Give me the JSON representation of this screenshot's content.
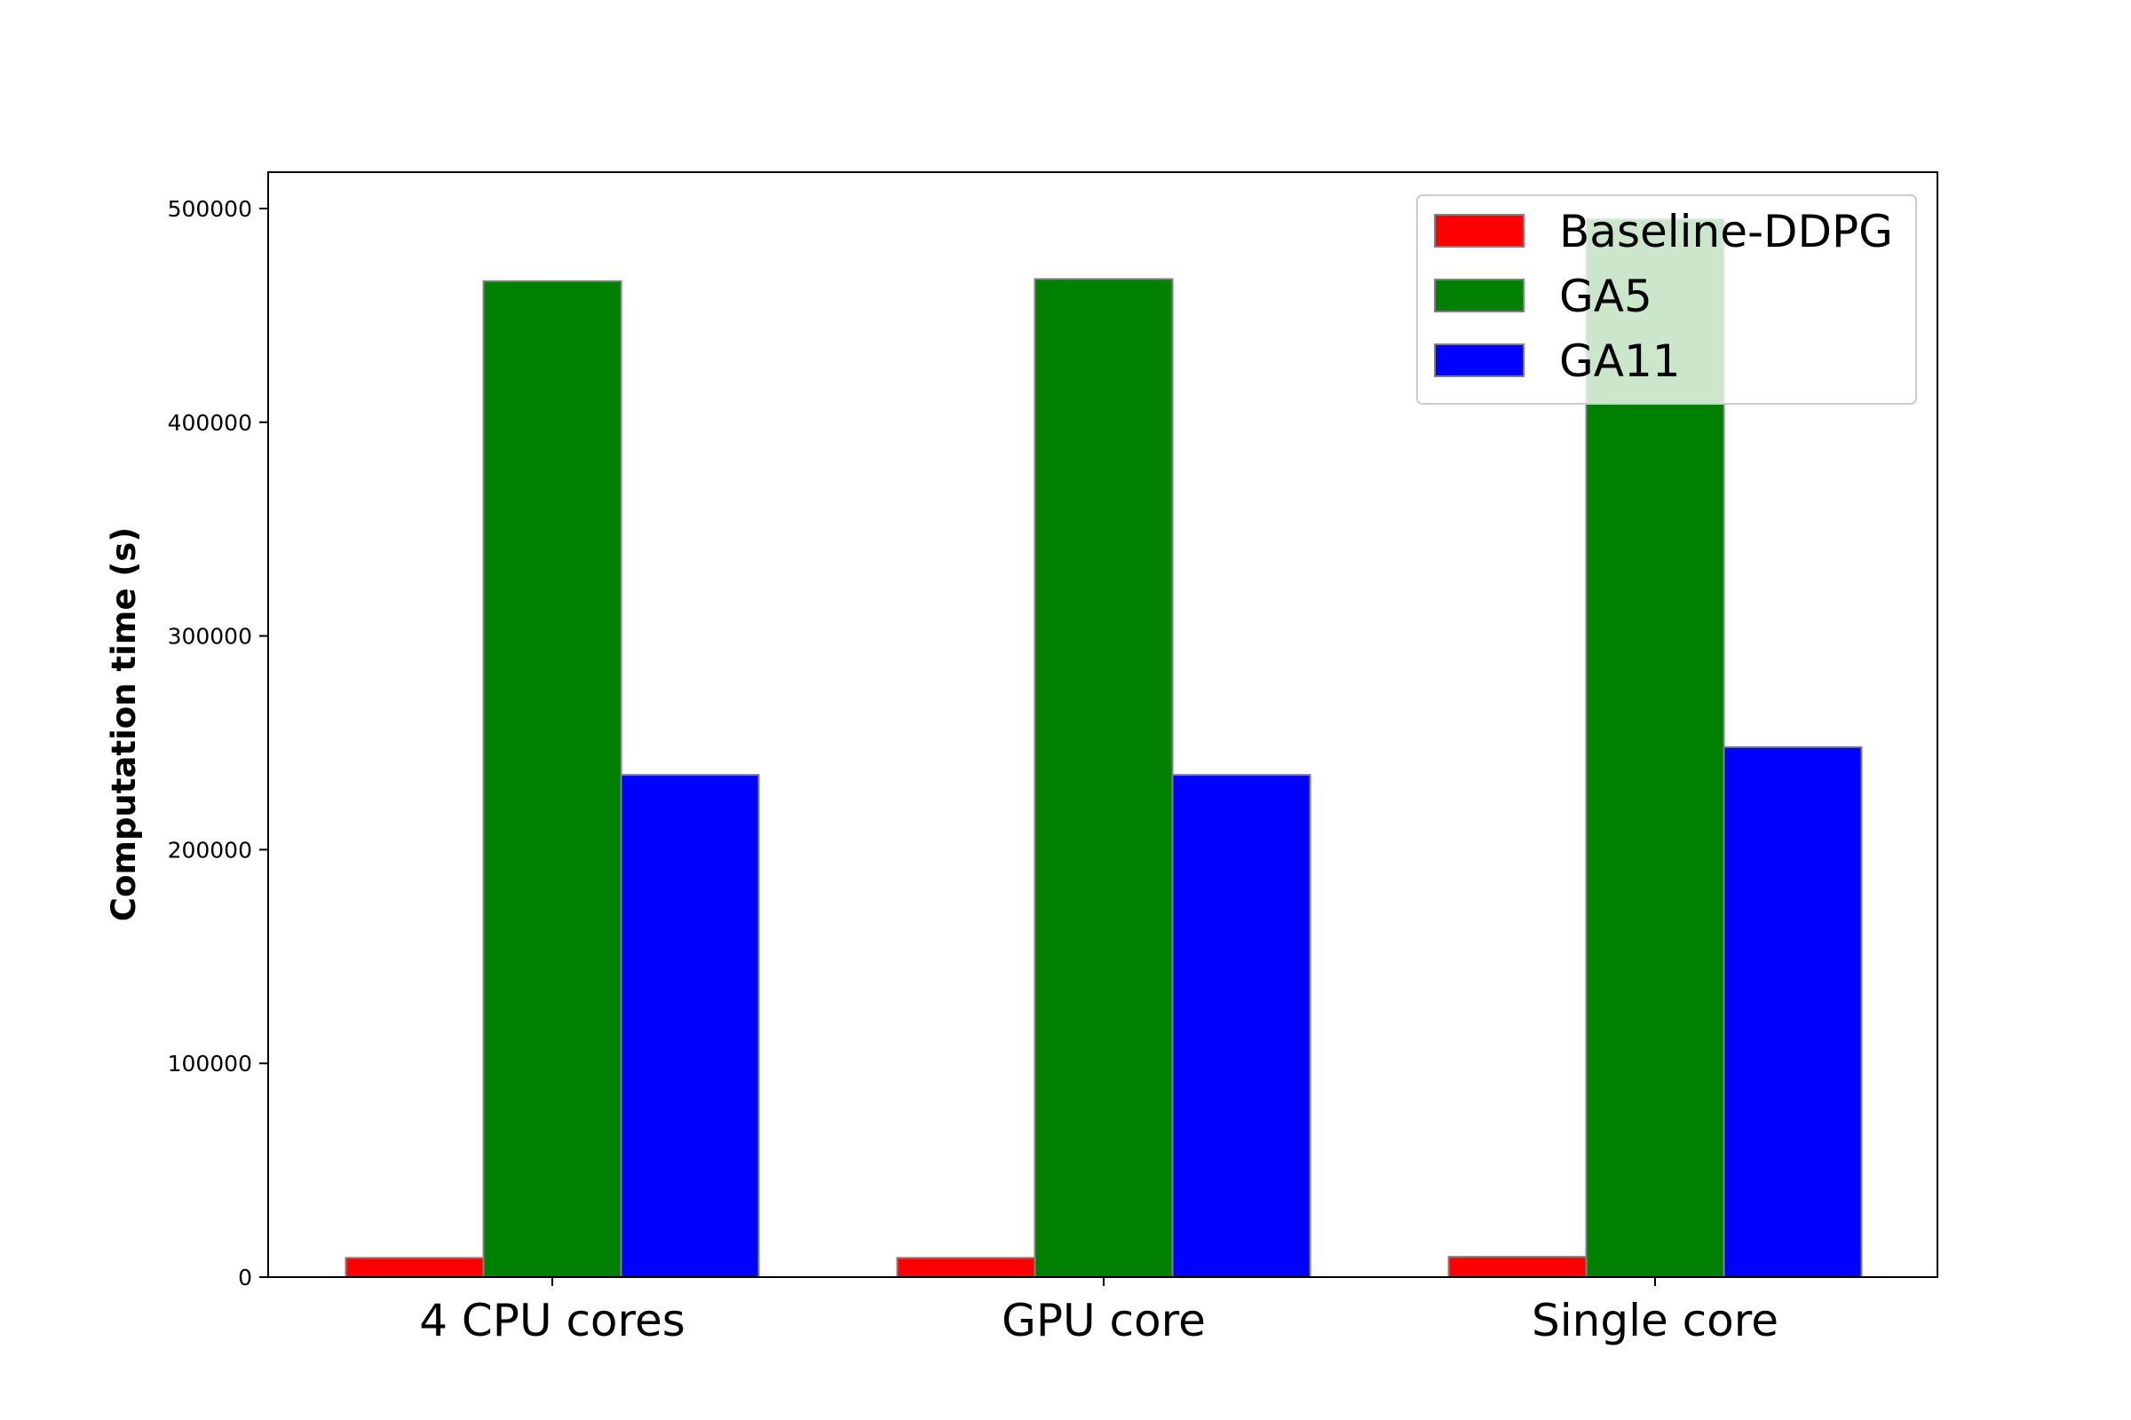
{
  "chart_data": {
    "type": "bar",
    "title": "",
    "xlabel": "",
    "ylabel": "Computation time (s)",
    "categories": [
      "4 CPU cores",
      "GPU core",
      "Single core"
    ],
    "series": [
      {
        "name": "Baseline-DDPG",
        "color": "#ff0000",
        "values": [
          9000,
          9000,
          9500
        ]
      },
      {
        "name": "GA5",
        "color": "#008000",
        "values": [
          466000,
          467000,
          495000
        ]
      },
      {
        "name": "GA11",
        "color": "#0000ff",
        "values": [
          235000,
          235000,
          248000
        ]
      }
    ],
    "ylim": [
      0,
      517000
    ],
    "yticks": [
      0,
      100000,
      200000,
      300000,
      400000,
      500000
    ],
    "ytick_labels": [
      "0",
      "100000",
      "200000",
      "300000",
      "400000",
      "500000"
    ],
    "grid": false,
    "legend_position": "top-right",
    "bar_edge_color": "#808080"
  }
}
